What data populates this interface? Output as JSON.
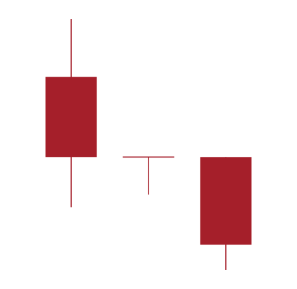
{
  "chart_data": {
    "type": "candlestick",
    "title": "",
    "xlabel": "",
    "ylabel": "",
    "grid": false,
    "legend": "none",
    "x": [
      1,
      2,
      3
    ],
    "ohlc": [
      {
        "open": 77.0,
        "high": 100.0,
        "low": 25.0,
        "close": 45.0
      },
      {
        "open": 45.0,
        "high": 45.0,
        "low": 30.0,
        "close": 45.0
      },
      {
        "open": 45.0,
        "high": 45.0,
        "low": 0.0,
        "close": 10.0
      }
    ],
    "ylim": [
      0,
      100
    ],
    "colors": {
      "down": "#a51f2a",
      "background": "#ffffff"
    }
  }
}
